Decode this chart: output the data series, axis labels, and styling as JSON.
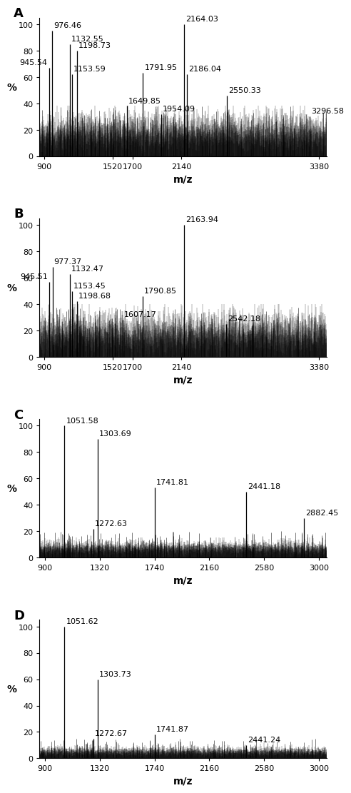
{
  "panels": [
    {
      "label": "A",
      "xlim": [
        860,
        3450
      ],
      "xticks": [
        900,
        1520,
        1700,
        2140,
        3380
      ],
      "ylim": [
        0,
        100
      ],
      "yticks": [
        0,
        20,
        40,
        60,
        80,
        100
      ],
      "noise_level": 18,
      "noise_amp": 8,
      "noise_density": 3000,
      "noise_max_clip": 38,
      "sparse_spikes": 80,
      "sparse_spike_max": 38,
      "peaks": [
        {
          "mz": 945.54,
          "intensity": 67,
          "label": "945.54",
          "label_side": "left"
        },
        {
          "mz": 976.46,
          "intensity": 95,
          "label": "976.46",
          "label_side": "right"
        },
        {
          "mz": 1132.55,
          "intensity": 85,
          "label": "1132.55",
          "label_side": "right"
        },
        {
          "mz": 1153.59,
          "intensity": 62,
          "label": "1153.59",
          "label_side": "right"
        },
        {
          "mz": 1198.73,
          "intensity": 80,
          "label": "1198.73",
          "label_side": "right"
        },
        {
          "mz": 1649.85,
          "intensity": 38,
          "label": "1649.85",
          "label_side": "right"
        },
        {
          "mz": 1791.95,
          "intensity": 63,
          "label": "1791.95",
          "label_side": "right"
        },
        {
          "mz": 1954.09,
          "intensity": 32,
          "label": "1954.09",
          "label_side": "right"
        },
        {
          "mz": 2164.03,
          "intensity": 100,
          "label": "2164.03",
          "label_side": "right"
        },
        {
          "mz": 2186.04,
          "intensity": 62,
          "label": "2186.04",
          "label_side": "right"
        },
        {
          "mz": 2550.33,
          "intensity": 46,
          "label": "2550.33",
          "label_side": "right"
        },
        {
          "mz": 3296.58,
          "intensity": 30,
          "label": "3296.58",
          "label_side": "right"
        }
      ]
    },
    {
      "label": "B",
      "xlim": [
        860,
        3450
      ],
      "xticks": [
        900,
        1520,
        1700,
        2140,
        3380
      ],
      "ylim": [
        0,
        100
      ],
      "yticks": [
        0,
        20,
        40,
        60,
        80,
        100
      ],
      "noise_level": 18,
      "noise_amp": 9,
      "noise_density": 3000,
      "noise_max_clip": 40,
      "sparse_spikes": 80,
      "sparse_spike_max": 38,
      "peaks": [
        {
          "mz": 945.51,
          "intensity": 57,
          "label": "945.51",
          "label_side": "left"
        },
        {
          "mz": 977.37,
          "intensity": 68,
          "label": "977.37",
          "label_side": "right"
        },
        {
          "mz": 1132.47,
          "intensity": 63,
          "label": "1132.47",
          "label_side": "right"
        },
        {
          "mz": 1153.45,
          "intensity": 50,
          "label": "1153.45",
          "label_side": "right"
        },
        {
          "mz": 1198.68,
          "intensity": 42,
          "label": "1198.68",
          "label_side": "right"
        },
        {
          "mz": 1607.17,
          "intensity": 28,
          "label": "1607.17",
          "label_side": "right"
        },
        {
          "mz": 1790.85,
          "intensity": 46,
          "label": "1790.85",
          "label_side": "right"
        },
        {
          "mz": 2163.94,
          "intensity": 100,
          "label": "2163.94",
          "label_side": "right"
        },
        {
          "mz": 2542.18,
          "intensity": 25,
          "label": "2542.18",
          "label_side": "right"
        }
      ]
    },
    {
      "label": "C",
      "xlim": [
        860,
        3060
      ],
      "xticks": [
        900,
        1320,
        1740,
        2160,
        2580,
        3000
      ],
      "ylim": [
        0,
        100
      ],
      "yticks": [
        0,
        20,
        40,
        60,
        80,
        100
      ],
      "noise_level": 7,
      "noise_amp": 3,
      "noise_density": 3000,
      "noise_max_clip": 15,
      "sparse_spikes": 120,
      "sparse_spike_max": 20,
      "peaks": [
        {
          "mz": 1051.58,
          "intensity": 100,
          "label": "1051.58",
          "label_side": "right"
        },
        {
          "mz": 1272.63,
          "intensity": 22,
          "label": "1272.63",
          "label_side": "right"
        },
        {
          "mz": 1303.69,
          "intensity": 90,
          "label": "1303.69",
          "label_side": "right"
        },
        {
          "mz": 1741.81,
          "intensity": 53,
          "label": "1741.81",
          "label_side": "right"
        },
        {
          "mz": 2441.18,
          "intensity": 50,
          "label": "2441.18",
          "label_side": "right"
        },
        {
          "mz": 2882.45,
          "intensity": 30,
          "label": "2882.45",
          "label_side": "right"
        }
      ]
    },
    {
      "label": "D",
      "xlim": [
        860,
        3060
      ],
      "xticks": [
        900,
        1320,
        1740,
        2160,
        2580,
        3000
      ],
      "ylim": [
        0,
        100
      ],
      "yticks": [
        0,
        20,
        40,
        60,
        80,
        100
      ],
      "noise_level": 5,
      "noise_amp": 2,
      "noise_density": 3000,
      "noise_max_clip": 12,
      "sparse_spikes": 100,
      "sparse_spike_max": 15,
      "peaks": [
        {
          "mz": 1051.62,
          "intensity": 100,
          "label": "1051.62",
          "label_side": "right"
        },
        {
          "mz": 1272.67,
          "intensity": 15,
          "label": "1272.67",
          "label_side": "right"
        },
        {
          "mz": 1303.73,
          "intensity": 60,
          "label": "1303.73",
          "label_side": "right"
        },
        {
          "mz": 1741.87,
          "intensity": 18,
          "label": "1741.87",
          "label_side": "right"
        },
        {
          "mz": 2441.24,
          "intensity": 10,
          "label": "2441.24",
          "label_side": "right"
        }
      ]
    }
  ],
  "ylabel": "%",
  "xlabel": "m/z",
  "font_size_label": 8,
  "font_size_panel": 13,
  "font_size_axis": 9,
  "font_size_tick": 8
}
